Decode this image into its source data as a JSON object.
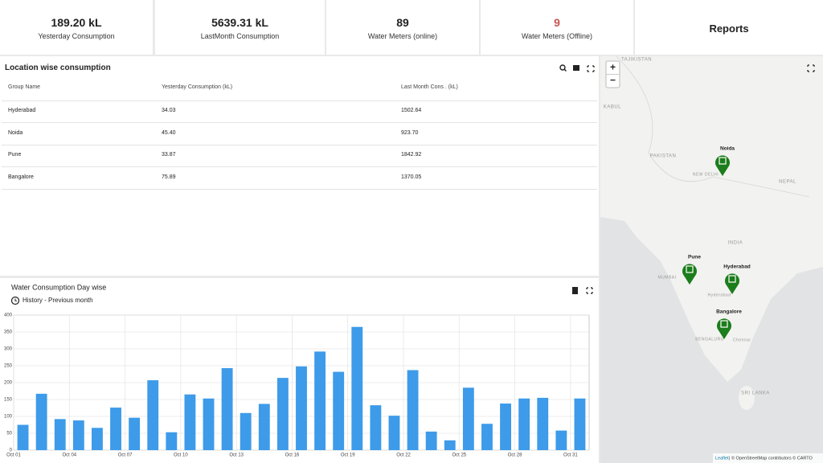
{
  "kpis": [
    {
      "value": "189.20 kL",
      "label": "Yesterday Consumption"
    },
    {
      "value": "5639.31 kL",
      "label": "LastMonth Consumption"
    },
    {
      "value": "89",
      "label": "Water Meters (online)"
    },
    {
      "value": "9",
      "label": "Water Meters (Offline)"
    }
  ],
  "reports": "Reports",
  "table": {
    "title": "Location wise consumption",
    "columns": [
      "Group Name",
      "Yesterday Consumption (kL)",
      "Last Month Cons . (kL)"
    ],
    "rows": [
      [
        "Hyderabad",
        "34.03",
        "1502.64"
      ],
      [
        "Noida",
        "45.40",
        "923.70"
      ],
      [
        "Pune",
        "33.87",
        "1842.92"
      ],
      [
        "Bangalore",
        "75.89",
        "1370.05"
      ]
    ]
  },
  "map": {
    "zoom_in": "+",
    "zoom_out": "−",
    "labels": [
      "TAJIKISTAN",
      "KABUL",
      "PAKISTAN",
      "NEW DELHI",
      "NEPAL",
      "INDIA",
      "MUMBAI",
      "Hyderabad",
      "BENGALURU",
      "Chennai",
      "SRI LANKA"
    ],
    "markers": [
      "Noida",
      "Pune",
      "Hyderabad",
      "Bangalore"
    ],
    "attribution": [
      "Leaflet",
      "| © OpenStreetMap contributors © CARTO"
    ]
  },
  "chart_data": {
    "type": "bar",
    "title": "Water Consumption Day wise",
    "subtitle": "History - Previous month",
    "categories": [
      "Oct 01",
      null,
      null,
      "Oct 04",
      null,
      null,
      "Oct 07",
      null,
      null,
      "Oct 10",
      null,
      null,
      "Oct 13",
      null,
      null,
      "Oct 16",
      null,
      null,
      "Oct 19",
      null,
      null,
      "Oct 22",
      null,
      null,
      "Oct 25",
      null,
      null,
      "Oct 28",
      null,
      null,
      "Oct 31"
    ],
    "values": [
      75,
      167,
      92,
      88,
      66,
      126,
      96,
      207,
      53,
      165,
      153,
      243,
      110,
      137,
      214,
      248,
      292,
      232,
      365,
      133,
      102,
      237,
      55,
      29,
      185,
      78,
      138,
      153,
      155,
      58,
      153
    ],
    "color": "#3d9be9",
    "ylim": [
      0,
      400
    ],
    "yticks": [
      0,
      50,
      100,
      150,
      200,
      250,
      300,
      350,
      400
    ],
    "grid": true
  }
}
